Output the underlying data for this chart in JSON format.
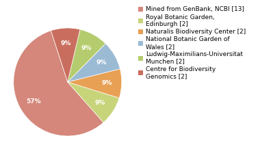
{
  "legend_labels": [
    "Mined from GenBank, NCBI [13]",
    "Royal Botanic Garden,\nEdinburgh [2]",
    "Naturalis Biodiversity Center [2]",
    "National Botanic Garden of\nWales [2]",
    "Ludwig-Maximilians-Universitat\nMunchen [2]",
    "Centre for Biodiversity\nGenomics [2]"
  ],
  "values": [
    13,
    2,
    2,
    2,
    2,
    2
  ],
  "colors": [
    "#d4877a",
    "#c8d47a",
    "#e8a054",
    "#9bbad4",
    "#b5cc6e",
    "#c96e5e"
  ],
  "autopct_fontsize": 6.5,
  "legend_fontsize": 6.5,
  "startangle": 108,
  "background_color": "#ffffff"
}
